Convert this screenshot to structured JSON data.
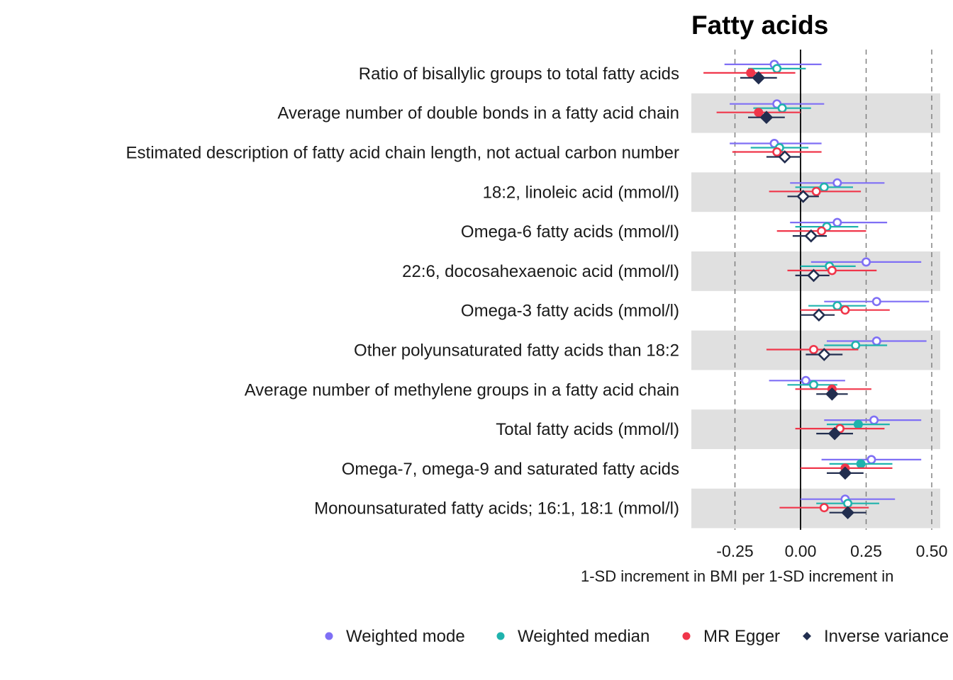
{
  "chart_data": {
    "type": "forest",
    "title": "Fatty acids",
    "xlabel": "1-SD increment in BMI per 1-SD increment in",
    "xlim": [
      -0.4,
      0.5
    ],
    "xticks": [
      -0.25,
      0.0,
      0.25,
      0.5
    ],
    "xtick_labels": [
      "-0.25",
      "0.00",
      "0.25",
      "0.50"
    ],
    "reference_line": 0,
    "dashed_lines": [
      -0.25,
      0.25,
      0.5
    ],
    "grid": false,
    "legend_position": "bottom",
    "categories": [
      "Ratio of bisallylic groups to total fatty acids",
      "Average number of double bonds in a fatty acid chain",
      "Estimated description of fatty acid chain length, not actual carbon number",
      "18:2, linoleic acid (mmol/l)",
      "Omega-6 fatty acids (mmol/l)",
      "22:6, docosahexaenoic acid (mmol/l)",
      "Omega-3 fatty acids (mmol/l)",
      "Other polyunsaturated fatty acids than 18:2",
      "Average number of methylene groups in a fatty acid chain",
      "Total fatty acids (mmol/l)",
      "Omega-7, omega-9 and saturated fatty acids",
      "Monounsaturated fatty acids; 16:1, 18:1 (mmol/l)"
    ],
    "series": [
      {
        "name": "Weighted mode",
        "color": "#7f6ff5",
        "marker": "circle",
        "estimate": [
          -0.1,
          -0.09,
          -0.1,
          0.14,
          0.14,
          0.25,
          0.29,
          0.29,
          0.02,
          0.28,
          0.27,
          0.17
        ],
        "lower": [
          -0.29,
          -0.27,
          -0.27,
          -0.04,
          -0.04,
          0.04,
          0.09,
          0.1,
          -0.12,
          0.09,
          0.08,
          0.0
        ],
        "upper": [
          0.08,
          0.09,
          0.08,
          0.32,
          0.33,
          0.46,
          0.49,
          0.48,
          0.17,
          0.46,
          0.46,
          0.36
        ],
        "significant": [
          false,
          false,
          false,
          false,
          false,
          false,
          false,
          false,
          false,
          false,
          false,
          false
        ]
      },
      {
        "name": "Weighted median",
        "color": "#1fb3ad",
        "marker": "circle",
        "estimate": [
          -0.09,
          -0.07,
          -0.08,
          0.09,
          0.1,
          0.11,
          0.14,
          0.21,
          0.05,
          0.22,
          0.23,
          0.18
        ],
        "lower": [
          -0.2,
          -0.18,
          -0.19,
          -0.02,
          -0.02,
          0.0,
          0.03,
          0.09,
          -0.05,
          0.1,
          0.11,
          0.06
        ],
        "upper": [
          0.02,
          0.04,
          0.03,
          0.2,
          0.22,
          0.21,
          0.25,
          0.33,
          0.14,
          0.34,
          0.35,
          0.3
        ],
        "significant": [
          false,
          false,
          false,
          false,
          false,
          false,
          false,
          false,
          false,
          true,
          true,
          false
        ]
      },
      {
        "name": "MR Egger",
        "color": "#f0364a",
        "marker": "circle",
        "estimate": [
          -0.19,
          -0.16,
          -0.09,
          0.06,
          0.08,
          0.12,
          0.17,
          0.05,
          0.12,
          0.15,
          0.17,
          0.09
        ],
        "lower": [
          -0.37,
          -0.32,
          -0.26,
          -0.12,
          -0.09,
          -0.05,
          0.0,
          -0.13,
          -0.02,
          -0.02,
          0.0,
          -0.08
        ],
        "upper": [
          -0.02,
          0.0,
          0.08,
          0.23,
          0.25,
          0.29,
          0.34,
          0.22,
          0.27,
          0.32,
          0.35,
          0.26
        ],
        "significant": [
          true,
          true,
          false,
          false,
          false,
          false,
          false,
          false,
          true,
          false,
          true,
          false
        ]
      },
      {
        "name": "Inverse variance weighted",
        "color": "#222e4f",
        "marker": "diamond",
        "estimate": [
          -0.16,
          -0.13,
          -0.06,
          0.01,
          0.04,
          0.05,
          0.07,
          0.09,
          0.12,
          0.13,
          0.17,
          0.18
        ],
        "lower": [
          -0.23,
          -0.2,
          -0.13,
          -0.05,
          -0.03,
          -0.02,
          0.0,
          0.02,
          0.06,
          0.06,
          0.1,
          0.11
        ],
        "upper": [
          -0.09,
          -0.06,
          0.0,
          0.07,
          0.1,
          0.11,
          0.13,
          0.16,
          0.18,
          0.2,
          0.24,
          0.25
        ],
        "significant": [
          true,
          true,
          false,
          false,
          false,
          false,
          false,
          false,
          true,
          true,
          true,
          true
        ]
      }
    ]
  }
}
